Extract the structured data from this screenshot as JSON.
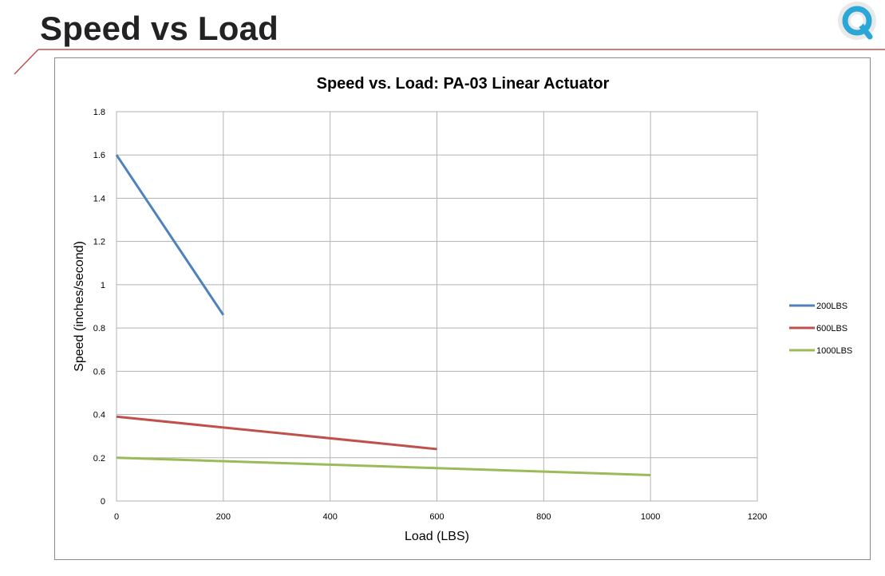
{
  "slide": {
    "title": "Speed vs Load",
    "logo_icon": "magnifier-q-icon"
  },
  "colors": {
    "accent_red": "#c0504d",
    "series_blue": "#4f81bd",
    "series_red": "#c0504d",
    "series_green": "#9bbb59",
    "grid": "#b3b3b3"
  },
  "chart_data": {
    "type": "line",
    "title": "Speed vs. Load: PA-03 Linear Actuator",
    "xlabel": "Load (LBS)",
    "ylabel": "Speed (inches/second)",
    "xlim": [
      0,
      1200
    ],
    "ylim": [
      0,
      1.8
    ],
    "xticks": [
      "0",
      "200",
      "400",
      "600",
      "800",
      "1000",
      "1200"
    ],
    "yticks": [
      "0",
      "0.2",
      "0.4",
      "0.6",
      "0.8",
      "1",
      "1.2",
      "1.4",
      "1.6",
      "1.8"
    ],
    "grid": true,
    "legend_position": "right",
    "series": [
      {
        "name": "200LBS",
        "color": "#4f81bd",
        "x": [
          0,
          200
        ],
        "y": [
          1.6,
          0.86
        ]
      },
      {
        "name": "600LBS",
        "color": "#c0504d",
        "x": [
          0,
          600
        ],
        "y": [
          0.39,
          0.24
        ]
      },
      {
        "name": "1000LBS",
        "color": "#9bbb59",
        "x": [
          0,
          1000
        ],
        "y": [
          0.2,
          0.12
        ]
      }
    ]
  }
}
